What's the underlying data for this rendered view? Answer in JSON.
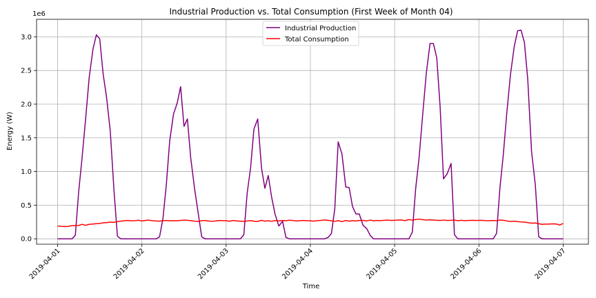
{
  "chart_data": {
    "type": "line",
    "title": "Industrial Production vs. Total Consumption (First Week of Month 04)",
    "xlabel": "Time",
    "ylabel": "Energy (W)",
    "y_offset_label": "1e6",
    "xlim": [
      -0.25,
      6.3
    ],
    "ylim": [
      -80000,
      3260000
    ],
    "x_ticks": [
      {
        "value": 0,
        "label": "2019-04-01"
      },
      {
        "value": 1,
        "label": "2019-04-02"
      },
      {
        "value": 2,
        "label": "2019-04-03"
      },
      {
        "value": 3,
        "label": "2019-04-04"
      },
      {
        "value": 4,
        "label": "2019-04-05"
      },
      {
        "value": 5,
        "label": "2019-04-06"
      },
      {
        "value": 6,
        "label": "2019-04-07"
      }
    ],
    "y_ticks": [
      {
        "value": 0,
        "label": "0.0"
      },
      {
        "value": 500000,
        "label": "0.5"
      },
      {
        "value": 1000000,
        "label": "1.0"
      },
      {
        "value": 1500000,
        "label": "1.5"
      },
      {
        "value": 2000000,
        "label": "2.0"
      },
      {
        "value": 2500000,
        "label": "2.5"
      },
      {
        "value": 3000000,
        "label": "3.0"
      }
    ],
    "grid": true,
    "legend_position": "top-center",
    "series": [
      {
        "name": "Industrial Production",
        "color": "#800080",
        "x_unit": "days since 2019-04-01",
        "points": [
          [
            0.0,
            0
          ],
          [
            0.04,
            0
          ],
          [
            0.08,
            0
          ],
          [
            0.12,
            0
          ],
          [
            0.17,
            0
          ],
          [
            0.21,
            50000
          ],
          [
            0.25,
            700000
          ],
          [
            0.29,
            1200000
          ],
          [
            0.33,
            1750000
          ],
          [
            0.375,
            2400000
          ],
          [
            0.42,
            2820000
          ],
          [
            0.46,
            3030000
          ],
          [
            0.5,
            2970000
          ],
          [
            0.54,
            2450000
          ],
          [
            0.58,
            2110000
          ],
          [
            0.625,
            1600000
          ],
          [
            0.67,
            700000
          ],
          [
            0.71,
            40000
          ],
          [
            0.75,
            0
          ],
          [
            0.79,
            0
          ],
          [
            0.83,
            0
          ],
          [
            0.875,
            0
          ],
          [
            0.92,
            0
          ],
          [
            0.96,
            0
          ],
          [
            1.0,
            0
          ],
          [
            1.04,
            0
          ],
          [
            1.08,
            0
          ],
          [
            1.12,
            0
          ],
          [
            1.17,
            0
          ],
          [
            1.21,
            30000
          ],
          [
            1.25,
            300000
          ],
          [
            1.29,
            800000
          ],
          [
            1.33,
            1450000
          ],
          [
            1.375,
            1850000
          ],
          [
            1.42,
            2020000
          ],
          [
            1.46,
            2260000
          ],
          [
            1.5,
            1670000
          ],
          [
            1.54,
            1780000
          ],
          [
            1.58,
            1200000
          ],
          [
            1.625,
            750000
          ],
          [
            1.67,
            370000
          ],
          [
            1.71,
            30000
          ],
          [
            1.75,
            0
          ],
          [
            1.79,
            0
          ],
          [
            1.83,
            0
          ],
          [
            1.875,
            0
          ],
          [
            1.92,
            0
          ],
          [
            1.96,
            0
          ],
          [
            2.0,
            0
          ],
          [
            2.04,
            0
          ],
          [
            2.08,
            0
          ],
          [
            2.12,
            0
          ],
          [
            2.17,
            0
          ],
          [
            2.21,
            60000
          ],
          [
            2.25,
            680000
          ],
          [
            2.29,
            1050000
          ],
          [
            2.33,
            1630000
          ],
          [
            2.375,
            1780000
          ],
          [
            2.42,
            1050000
          ],
          [
            2.46,
            750000
          ],
          [
            2.5,
            940000
          ],
          [
            2.54,
            620000
          ],
          [
            2.58,
            370000
          ],
          [
            2.625,
            190000
          ],
          [
            2.67,
            260000
          ],
          [
            2.71,
            20000
          ],
          [
            2.75,
            0
          ],
          [
            2.79,
            0
          ],
          [
            2.83,
            0
          ],
          [
            2.875,
            0
          ],
          [
            2.92,
            0
          ],
          [
            2.96,
            0
          ],
          [
            3.0,
            0
          ],
          [
            3.04,
            0
          ],
          [
            3.08,
            0
          ],
          [
            3.12,
            0
          ],
          [
            3.17,
            0
          ],
          [
            3.21,
            20000
          ],
          [
            3.25,
            80000
          ],
          [
            3.29,
            450000
          ],
          [
            3.33,
            1440000
          ],
          [
            3.375,
            1260000
          ],
          [
            3.42,
            770000
          ],
          [
            3.46,
            760000
          ],
          [
            3.5,
            480000
          ],
          [
            3.54,
            370000
          ],
          [
            3.58,
            370000
          ],
          [
            3.625,
            200000
          ],
          [
            3.67,
            150000
          ],
          [
            3.71,
            50000
          ],
          [
            3.75,
            0
          ],
          [
            3.79,
            0
          ],
          [
            3.83,
            0
          ],
          [
            3.875,
            0
          ],
          [
            3.92,
            0
          ],
          [
            3.96,
            0
          ],
          [
            4.0,
            0
          ],
          [
            4.04,
            0
          ],
          [
            4.08,
            0
          ],
          [
            4.12,
            0
          ],
          [
            4.17,
            0
          ],
          [
            4.21,
            100000
          ],
          [
            4.25,
            750000
          ],
          [
            4.29,
            1200000
          ],
          [
            4.33,
            1800000
          ],
          [
            4.375,
            2450000
          ],
          [
            4.42,
            2900000
          ],
          [
            4.46,
            2900000
          ],
          [
            4.5,
            2690000
          ],
          [
            4.54,
            1960000
          ],
          [
            4.58,
            890000
          ],
          [
            4.625,
            970000
          ],
          [
            4.67,
            1120000
          ],
          [
            4.71,
            60000
          ],
          [
            4.75,
            0
          ],
          [
            4.79,
            0
          ],
          [
            4.83,
            0
          ],
          [
            4.875,
            0
          ],
          [
            4.92,
            0
          ],
          [
            4.96,
            0
          ],
          [
            5.0,
            0
          ],
          [
            5.04,
            0
          ],
          [
            5.08,
            0
          ],
          [
            5.12,
            0
          ],
          [
            5.17,
            0
          ],
          [
            5.21,
            80000
          ],
          [
            5.25,
            760000
          ],
          [
            5.29,
            1250000
          ],
          [
            5.33,
            1850000
          ],
          [
            5.375,
            2440000
          ],
          [
            5.42,
            2860000
          ],
          [
            5.46,
            3090000
          ],
          [
            5.5,
            3100000
          ],
          [
            5.54,
            2920000
          ],
          [
            5.58,
            2370000
          ],
          [
            5.625,
            1300000
          ],
          [
            5.67,
            800000
          ],
          [
            5.71,
            30000
          ],
          [
            5.75,
            0
          ],
          [
            5.79,
            0
          ],
          [
            5.83,
            0
          ],
          [
            5.875,
            0
          ],
          [
            5.92,
            0
          ],
          [
            5.96,
            0
          ],
          [
            6.0,
            0
          ]
        ]
      },
      {
        "name": "Total Consumption",
        "color": "#ff0000",
        "x_unit": "days since 2019-04-01",
        "points": [
          [
            0.0,
            190000
          ],
          [
            0.04,
            185000
          ],
          [
            0.08,
            183000
          ],
          [
            0.12,
            184000
          ],
          [
            0.17,
            195000
          ],
          [
            0.21,
            196000
          ],
          [
            0.25,
            198000
          ],
          [
            0.29,
            215000
          ],
          [
            0.33,
            200000
          ],
          [
            0.375,
            215000
          ],
          [
            0.42,
            220000
          ],
          [
            0.46,
            225000
          ],
          [
            0.5,
            228000
          ],
          [
            0.54,
            238000
          ],
          [
            0.58,
            240000
          ],
          [
            0.625,
            248000
          ],
          [
            0.67,
            244000
          ],
          [
            0.71,
            255000
          ],
          [
            0.75,
            262000
          ],
          [
            0.79,
            268000
          ],
          [
            0.83,
            272000
          ],
          [
            0.875,
            268000
          ],
          [
            0.92,
            270000
          ],
          [
            0.96,
            276000
          ],
          [
            1.0,
            265000
          ],
          [
            1.04,
            272000
          ],
          [
            1.08,
            278000
          ],
          [
            1.12,
            270000
          ],
          [
            1.17,
            265000
          ],
          [
            1.21,
            262000
          ],
          [
            1.25,
            270000
          ],
          [
            1.29,
            272000
          ],
          [
            1.33,
            268000
          ],
          [
            1.375,
            270000
          ],
          [
            1.42,
            268000
          ],
          [
            1.46,
            273000
          ],
          [
            1.5,
            278000
          ],
          [
            1.54,
            275000
          ],
          [
            1.58,
            270000
          ],
          [
            1.625,
            262000
          ],
          [
            1.67,
            258000
          ],
          [
            1.71,
            270000
          ],
          [
            1.75,
            272000
          ],
          [
            1.79,
            265000
          ],
          [
            1.83,
            260000
          ],
          [
            1.875,
            265000
          ],
          [
            1.92,
            272000
          ],
          [
            1.96,
            270000
          ],
          [
            2.0,
            268000
          ],
          [
            2.04,
            262000
          ],
          [
            2.08,
            272000
          ],
          [
            2.12,
            266000
          ],
          [
            2.17,
            262000
          ],
          [
            2.21,
            258000
          ],
          [
            2.25,
            265000
          ],
          [
            2.29,
            270000
          ],
          [
            2.33,
            262000
          ],
          [
            2.375,
            258000
          ],
          [
            2.42,
            275000
          ],
          [
            2.46,
            262000
          ],
          [
            2.5,
            268000
          ],
          [
            2.54,
            260000
          ],
          [
            2.58,
            270000
          ],
          [
            2.625,
            266000
          ],
          [
            2.67,
            272000
          ],
          [
            2.71,
            268000
          ],
          [
            2.75,
            276000
          ],
          [
            2.79,
            272000
          ],
          [
            2.83,
            266000
          ],
          [
            2.875,
            270000
          ],
          [
            2.92,
            272000
          ],
          [
            2.96,
            268000
          ],
          [
            3.0,
            268000
          ],
          [
            3.04,
            262000
          ],
          [
            3.08,
            270000
          ],
          [
            3.12,
            272000
          ],
          [
            3.17,
            280000
          ],
          [
            3.21,
            274000
          ],
          [
            3.25,
            268000
          ],
          [
            3.29,
            260000
          ],
          [
            3.33,
            270000
          ],
          [
            3.375,
            255000
          ],
          [
            3.42,
            272000
          ],
          [
            3.46,
            262000
          ],
          [
            3.5,
            270000
          ],
          [
            3.54,
            265000
          ],
          [
            3.58,
            272000
          ],
          [
            3.625,
            275000
          ],
          [
            3.67,
            265000
          ],
          [
            3.71,
            278000
          ],
          [
            3.75,
            268000
          ],
          [
            3.79,
            272000
          ],
          [
            3.83,
            270000
          ],
          [
            3.875,
            275000
          ],
          [
            3.92,
            278000
          ],
          [
            3.96,
            272000
          ],
          [
            4.0,
            275000
          ],
          [
            4.04,
            278000
          ],
          [
            4.08,
            280000
          ],
          [
            4.12,
            270000
          ],
          [
            4.17,
            285000
          ],
          [
            4.21,
            278000
          ],
          [
            4.25,
            286000
          ],
          [
            4.29,
            292000
          ],
          [
            4.33,
            285000
          ],
          [
            4.375,
            278000
          ],
          [
            4.42,
            282000
          ],
          [
            4.46,
            278000
          ],
          [
            4.5,
            275000
          ],
          [
            4.54,
            272000
          ],
          [
            4.58,
            278000
          ],
          [
            4.625,
            272000
          ],
          [
            4.67,
            275000
          ],
          [
            4.71,
            278000
          ],
          [
            4.75,
            268000
          ],
          [
            4.79,
            275000
          ],
          [
            4.83,
            270000
          ],
          [
            4.875,
            272000
          ],
          [
            4.92,
            275000
          ],
          [
            4.96,
            272000
          ],
          [
            5.0,
            274000
          ],
          [
            5.04,
            275000
          ],
          [
            5.08,
            270000
          ],
          [
            5.12,
            268000
          ],
          [
            5.17,
            272000
          ],
          [
            5.21,
            270000
          ],
          [
            5.25,
            278000
          ],
          [
            5.29,
            276000
          ],
          [
            5.33,
            265000
          ],
          [
            5.375,
            258000
          ],
          [
            5.42,
            262000
          ],
          [
            5.46,
            255000
          ],
          [
            5.5,
            250000
          ],
          [
            5.54,
            248000
          ],
          [
            5.58,
            240000
          ],
          [
            5.625,
            232000
          ],
          [
            5.67,
            235000
          ],
          [
            5.71,
            225000
          ],
          [
            5.75,
            215000
          ],
          [
            5.79,
            218000
          ],
          [
            5.83,
            218000
          ],
          [
            5.875,
            222000
          ],
          [
            5.92,
            220000
          ],
          [
            5.96,
            205000
          ],
          [
            6.0,
            228000
          ]
        ]
      }
    ]
  }
}
